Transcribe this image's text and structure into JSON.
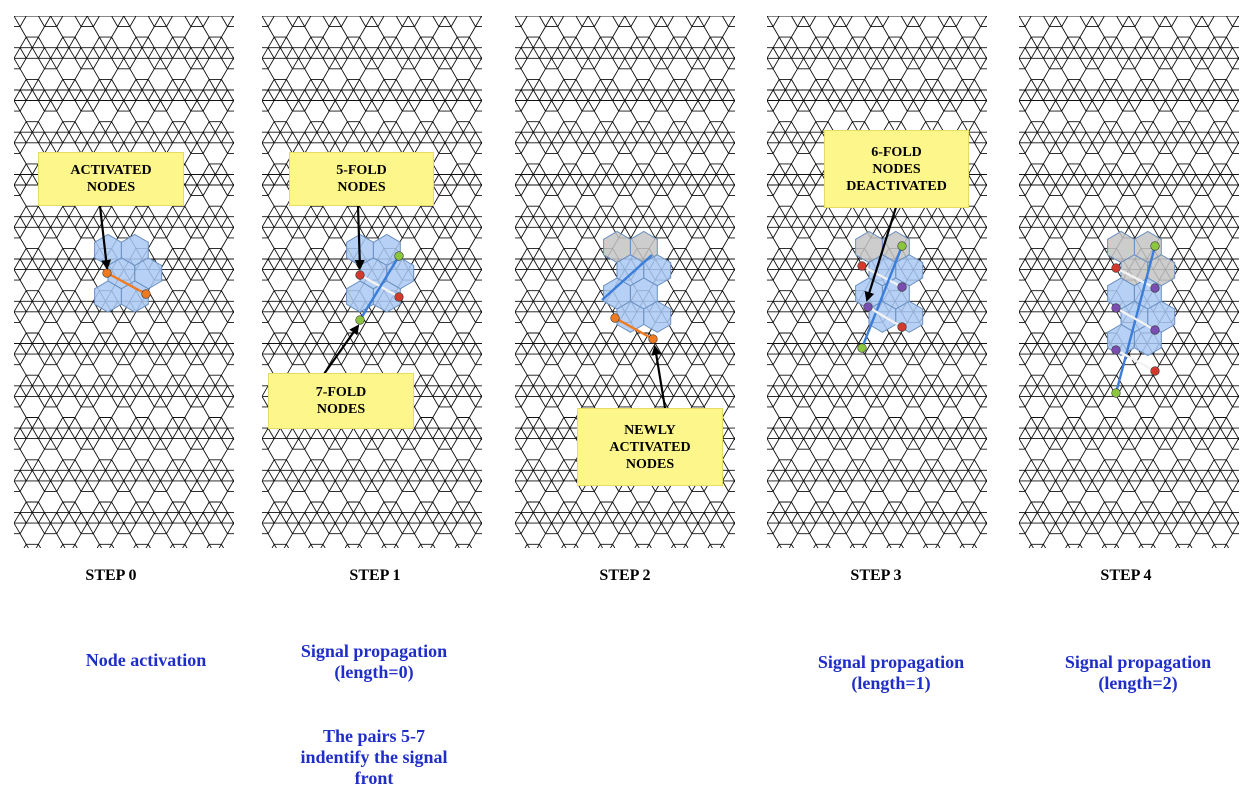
{
  "panels": [
    {
      "step": "STEP 0",
      "caption": "Node activation",
      "callouts": [
        "ACTIVATED\nNODES"
      ],
      "hex_states": [
        [
          "blue",
          "blue"
        ],
        [
          "blue",
          "blue"
        ],
        [
          "blue",
          "blue"
        ]
      ],
      "node_kinds": [
        "orange",
        "orange"
      ]
    },
    {
      "step": "STEP 1",
      "caption": "Signal propagation\n(length=0)",
      "note": "The pairs 5-7\nindentify the signal\nfront",
      "callouts": [
        "5-FOLD\nNODES",
        "7-FOLD\nNODES"
      ],
      "hex_states": [
        [
          "blue",
          "blue"
        ],
        [
          "blue",
          "blue"
        ],
        [
          "blue",
          "blue"
        ]
      ],
      "node_kinds": [
        "red",
        "green",
        "red",
        "green"
      ]
    },
    {
      "step": "STEP 2",
      "caption": "",
      "callouts": [
        "NEWLY\nACTIVATED\nNODES"
      ],
      "hex_states": [
        [
          "gray",
          "gray"
        ],
        [
          "blue",
          "blue"
        ],
        [
          "blue",
          "blue"
        ],
        [
          "blue",
          "blue"
        ]
      ],
      "node_kinds": [
        "orange",
        "orange"
      ]
    },
    {
      "step": "STEP 3",
      "caption": "Signal propagation\n(length=1)",
      "callouts": [
        "6-FOLD\nNODES\nDEACTIVATED"
      ],
      "hex_states": [
        [
          "gray",
          "gray"
        ],
        [
          "blue",
          "blue"
        ],
        [
          "blue",
          "blue"
        ],
        [
          "blue",
          "blue"
        ]
      ],
      "node_kinds": [
        "red",
        "green",
        "purple",
        "purple",
        "red",
        "green"
      ]
    },
    {
      "step": "STEP 4",
      "caption": "Signal propagation\n(length=2)",
      "callouts": [],
      "hex_states": [
        [
          "gray",
          "gray"
        ],
        [
          "gray",
          "gray"
        ],
        [
          "blue",
          "blue"
        ],
        [
          "blue",
          "blue"
        ],
        [
          "blue",
          "blue"
        ]
      ],
      "node_kinds": [
        "red",
        "green",
        "purple",
        "purple",
        "purple",
        "purple",
        "red",
        "green"
      ]
    }
  ],
  "colors": {
    "lattice": "#111111",
    "hex_blue": "#a9c9f3",
    "hex_gray": "#c4c4c4",
    "orange": "#f07a20",
    "red": "#d23a2e",
    "green": "#8cc63f",
    "purple": "#7a4db0",
    "edge_blue": "#3b7dd8",
    "callout_bg": "#fdf68a",
    "caption": "#1f2ec8"
  },
  "icons": [
    "arrow-icon"
  ]
}
